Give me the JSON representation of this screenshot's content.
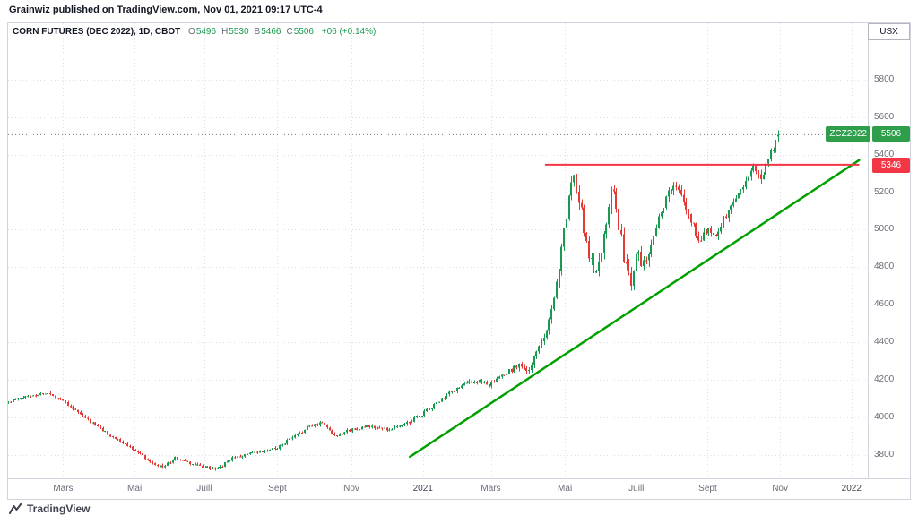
{
  "header": {
    "text": "Grainwiz published on TradingView.com, Nov 01, 2021 09:17 UTC-4"
  },
  "legend": {
    "title": "CORN FUTURES (DEC 2022), 1D, CBOT",
    "ohlc": [
      {
        "label": "O",
        "value": "5496"
      },
      {
        "label": "H",
        "value": "5530"
      },
      {
        "label": "B",
        "value": "5466"
      },
      {
        "label": "C",
        "value": "5506"
      }
    ],
    "change": "+06 (+0.14%)"
  },
  "axis": {
    "unit": "USX",
    "price_ticks": [
      5800,
      5600,
      5400,
      5200,
      5000,
      4800,
      4600,
      4400,
      4200,
      4000,
      3800
    ],
    "time_ticks": [
      {
        "label": "Mars",
        "t": 0.064
      },
      {
        "label": "Mai",
        "t": 0.147
      },
      {
        "label": "Juill",
        "t": 0.228
      },
      {
        "label": "Sept",
        "t": 0.313
      },
      {
        "label": "Nov",
        "t": 0.399
      },
      {
        "label": "2021",
        "t": 0.482,
        "year": true
      },
      {
        "label": "Mars",
        "t": 0.561
      },
      {
        "label": "Mai",
        "t": 0.647
      },
      {
        "label": "Juill",
        "t": 0.73
      },
      {
        "label": "Sept",
        "t": 0.813
      },
      {
        "label": "Nov",
        "t": 0.897
      },
      {
        "label": "2022",
        "t": 0.98,
        "year": true
      }
    ]
  },
  "badges": {
    "last": {
      "symbol": "ZCZ2022",
      "price": "5506",
      "value": 5506,
      "color": "#2f9e4b"
    },
    "line": {
      "price": "5346",
      "value": 5346,
      "color": "#f23645"
    }
  },
  "footer": {
    "brand": "TradingView"
  },
  "chart_data": {
    "type": "candlestick",
    "symbol": "CORN FUTURES (DEC 2022)",
    "interval": "1D",
    "exchange": "CBOT",
    "unit": "USX",
    "title_ohlc": {
      "open": 5496,
      "high": 5530,
      "low": 5466,
      "close": 5506,
      "change": "+06 (+0.14%)"
    },
    "last_candle": {
      "open": 5496,
      "high": 5530,
      "low": 5466,
      "close": 5506
    },
    "price_range": {
      "top": 6100,
      "bottom": 3670
    },
    "x_domain": "Feb 2020 - Nov 2021, daily candles; empty space to 2022 on right",
    "trend_keypoints": [
      [
        0.0,
        4080
      ],
      [
        0.02,
        4110
      ],
      [
        0.045,
        4130
      ],
      [
        0.064,
        4090
      ],
      [
        0.085,
        4010
      ],
      [
        0.11,
        3930
      ],
      [
        0.13,
        3870
      ],
      [
        0.147,
        3830
      ],
      [
        0.163,
        3770
      ],
      [
        0.18,
        3735
      ],
      [
        0.195,
        3785
      ],
      [
        0.21,
        3755
      ],
      [
        0.228,
        3735
      ],
      [
        0.243,
        3720
      ],
      [
        0.258,
        3775
      ],
      [
        0.275,
        3800
      ],
      [
        0.295,
        3815
      ],
      [
        0.313,
        3840
      ],
      [
        0.33,
        3890
      ],
      [
        0.348,
        3945
      ],
      [
        0.365,
        3975
      ],
      [
        0.38,
        3900
      ],
      [
        0.399,
        3935
      ],
      [
        0.42,
        3950
      ],
      [
        0.44,
        3935
      ],
      [
        0.46,
        3960
      ],
      [
        0.482,
        4020
      ],
      [
        0.5,
        4080
      ],
      [
        0.52,
        4150
      ],
      [
        0.54,
        4195
      ],
      [
        0.561,
        4175
      ],
      [
        0.578,
        4230
      ],
      [
        0.595,
        4290
      ],
      [
        0.602,
        4230
      ],
      [
        0.61,
        4300
      ],
      [
        0.618,
        4380
      ],
      [
        0.627,
        4500
      ],
      [
        0.636,
        4680
      ],
      [
        0.645,
        4950
      ],
      [
        0.652,
        5180
      ],
      [
        0.658,
        5280
      ],
      [
        0.665,
        5130
      ],
      [
        0.672,
        4930
      ],
      [
        0.68,
        4780
      ],
      [
        0.688,
        4850
      ],
      [
        0.695,
        5060
      ],
      [
        0.701,
        5250
      ],
      [
        0.708,
        5080
      ],
      [
        0.716,
        4840
      ],
      [
        0.725,
        4680
      ],
      [
        0.731,
        4950
      ],
      [
        0.737,
        4800
      ],
      [
        0.745,
        4900
      ],
      [
        0.755,
        5060
      ],
      [
        0.765,
        5170
      ],
      [
        0.773,
        5240
      ],
      [
        0.782,
        5180
      ],
      [
        0.793,
        5050
      ],
      [
        0.803,
        4950
      ],
      [
        0.812,
        5000
      ],
      [
        0.82,
        4970
      ],
      [
        0.828,
        5030
      ],
      [
        0.836,
        5090
      ],
      [
        0.845,
        5160
      ],
      [
        0.853,
        5230
      ],
      [
        0.86,
        5290
      ],
      [
        0.867,
        5330
      ],
      [
        0.873,
        5270
      ],
      [
        0.879,
        5320
      ],
      [
        0.885,
        5390
      ],
      [
        0.895,
        5500
      ]
    ],
    "volatility_keypoints": [
      [
        0.0,
        16
      ],
      [
        0.3,
        15
      ],
      [
        0.4,
        16
      ],
      [
        0.48,
        20
      ],
      [
        0.55,
        24
      ],
      [
        0.6,
        30
      ],
      [
        0.63,
        48
      ],
      [
        0.655,
        75
      ],
      [
        0.7,
        75
      ],
      [
        0.73,
        65
      ],
      [
        0.76,
        55
      ],
      [
        0.8,
        45
      ],
      [
        0.85,
        42
      ],
      [
        0.895,
        40
      ]
    ],
    "num_candles": 310,
    "seed": 11,
    "lines": {
      "resistance": {
        "type": "horizontal",
        "price": 5346,
        "t1": 0.624,
        "t2": 0.989,
        "color": "#f23645"
      },
      "support_trendline": {
        "type": "trend",
        "p1": [
          0.467,
          3790
        ],
        "p2": [
          0.989,
          5371
        ],
        "color": "#00a000"
      },
      "last_price_line": {
        "price": 5506,
        "style": "dotted",
        "color": "#787b86"
      }
    },
    "colors": {
      "up": "#189a50",
      "down": "#e53935"
    },
    "grid": true,
    "legend_position": "top-left",
    "ylim": [
      3670,
      6100
    ]
  }
}
